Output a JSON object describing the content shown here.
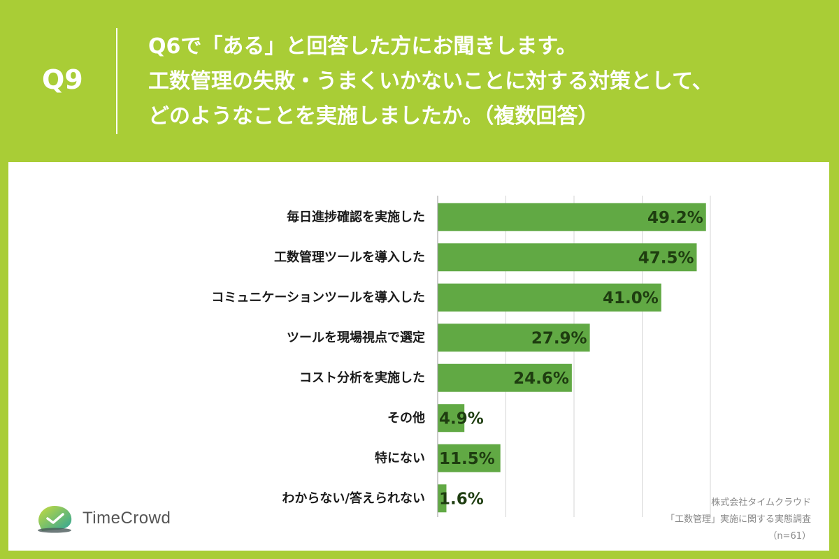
{
  "header": {
    "question_number": "Q9",
    "question_lines": [
      "Q6で「ある」と回答した方にお聞きします。",
      "工数管理の失敗・うまくいかないことに対する対策として、",
      "どのようなことを実施しましたか。（複数回答）"
    ]
  },
  "colors": {
    "background": "#a9cd36",
    "bar": "#61a944",
    "grid": "#d4d4d4",
    "value_text": "#1e3d10"
  },
  "chart_data": {
    "type": "bar",
    "orientation": "horizontal",
    "categories": [
      "毎日進捗確認を実施した",
      "工数管理ツールを導入した",
      "コミュニケーションツールを導入した",
      "ツールを現場視点で選定",
      "コスト分析を実施した",
      "その他",
      "特にない",
      "わからない/答えられない"
    ],
    "values": [
      49.2,
      47.5,
      41.0,
      27.9,
      24.6,
      4.9,
      11.5,
      1.6
    ],
    "value_labels": [
      "49.2%",
      "47.5%",
      "41.0%",
      "27.9%",
      "24.6%",
      "4.9%",
      "11.5%",
      "1.6%"
    ],
    "xlim": [
      0,
      50
    ],
    "grid": true,
    "grid_step": 12.5
  },
  "logo": {
    "name": "TimeCrowd",
    "icon": "timecrowd-logo-icon"
  },
  "source": {
    "company": "株式会社タイムクラウド",
    "survey": "「工数管理」実施に関する実態調査",
    "sample": "（n=61）"
  }
}
